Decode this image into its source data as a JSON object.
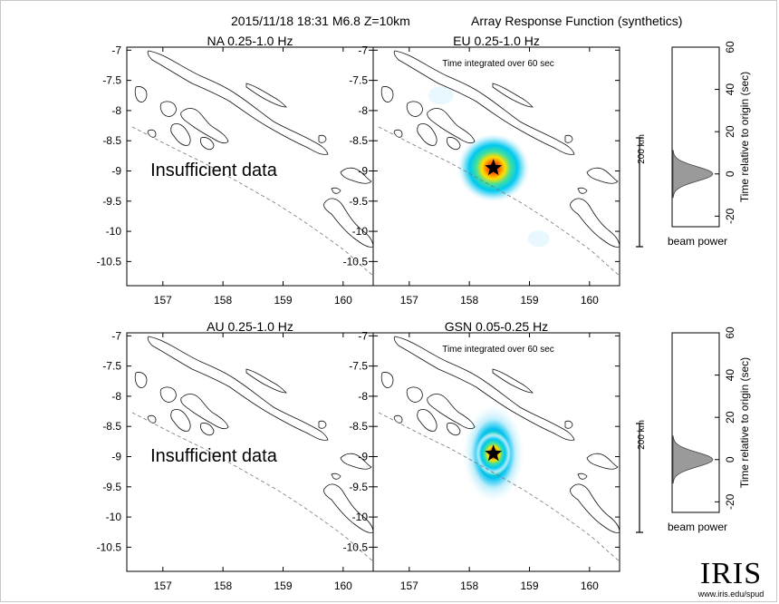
{
  "header": {
    "event": "2015/11/18 18:31  M6.8  Z=10km",
    "title": "Array Response Function (synthetics)"
  },
  "panels": [
    {
      "id": "NA",
      "label": "NA  0.25-1.0 Hz",
      "overlay": "Insufficient data",
      "note": "",
      "scale": "",
      "heat": false
    },
    {
      "id": "EU",
      "label": "EU  0.25-1.0 Hz",
      "overlay": "",
      "note": "Time integrated over 60 sec",
      "scale": "200 km",
      "heat": true
    },
    {
      "id": "AU",
      "label": "AU  0.25-1.0 Hz",
      "overlay": "Insufficient data",
      "note": "",
      "scale": "",
      "heat": false
    },
    {
      "id": "GSN",
      "label": "GSN  0.05-0.25 Hz",
      "overlay": "",
      "note": "Time integrated over 60 sec",
      "scale": "200 km",
      "heat": true
    }
  ],
  "map_axes": {
    "x_ticks": [
      "157",
      "158",
      "159",
      "160"
    ],
    "y_ticks": [
      "-7",
      "-7.5",
      "-8",
      "-8.5",
      "-9",
      "-9.5",
      "-10",
      "-10.5"
    ],
    "x_range": [
      156.4,
      160.5
    ],
    "y_range": [
      -10.9,
      -6.95
    ]
  },
  "beam": {
    "ylabel": "Time relative to origin (sec)",
    "xlabel": "beam power",
    "y_ticks": [
      "60",
      "40",
      "20",
      "0",
      "-20"
    ],
    "y_range": [
      -25,
      60
    ],
    "peak_time": 0
  },
  "epicenter": {
    "lon": 158.4,
    "lat": -8.95
  },
  "logo": {
    "name": "IRIS",
    "url": "www.iris.edu/spud"
  },
  "colors": {
    "trench": "#777777",
    "beam_fill": "#9a9a9a",
    "star": "#000000"
  }
}
